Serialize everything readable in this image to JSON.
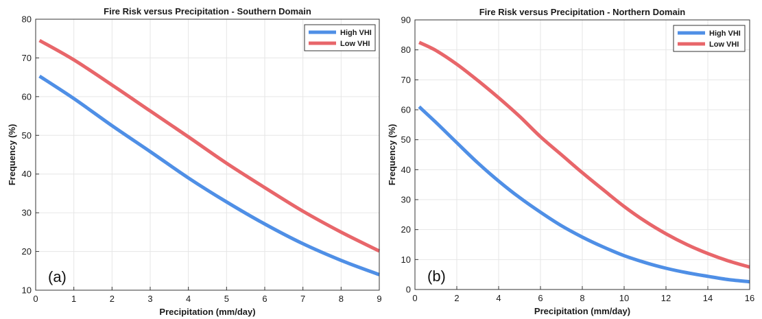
{
  "chart_data": [
    {
      "type": "line",
      "title": "Fire Risk versus Precipitation - Southern Domain",
      "xlabel": "Precipitation (mm/day)",
      "ylabel": "Frequency (%)",
      "xlim": [
        0,
        9
      ],
      "ylim": [
        10,
        80
      ],
      "xticks": [
        0,
        1,
        2,
        3,
        4,
        5,
        6,
        7,
        8,
        9
      ],
      "yticks": [
        10,
        20,
        30,
        40,
        50,
        60,
        70,
        80
      ],
      "grid": true,
      "legend_position": "top-right",
      "panel_tag": "(a)",
      "series": [
        {
          "name": "High VHI",
          "color": "#4f8fe6",
          "x": [
            0.1,
            1,
            2,
            3,
            4,
            5,
            6,
            7,
            8,
            9
          ],
          "values": [
            65.3,
            59.5,
            52.5,
            45.8,
            39.0,
            32.8,
            27.1,
            22.0,
            17.7,
            14.0
          ]
        },
        {
          "name": "Low VHI",
          "color": "#e8666a",
          "x": [
            0.1,
            1,
            2,
            3,
            4,
            5,
            6,
            7,
            8,
            9
          ],
          "values": [
            74.5,
            69.5,
            63.0,
            56.3,
            49.6,
            42.8,
            36.5,
            30.4,
            25.0,
            20.1
          ]
        }
      ]
    },
    {
      "type": "line",
      "title": "Fire Risk versus Precipitation - Northern Domain",
      "xlabel": "Precipitation (mm/day)",
      "ylabel": "Frequency (%)",
      "xlim": [
        0,
        16
      ],
      "ylim": [
        0,
        90
      ],
      "xticks": [
        0,
        2,
        4,
        6,
        8,
        10,
        12,
        14,
        16
      ],
      "yticks": [
        0,
        10,
        20,
        30,
        40,
        50,
        60,
        70,
        80,
        90
      ],
      "grid": true,
      "legend_position": "top-right",
      "panel_tag": "(b)",
      "series": [
        {
          "name": "High VHI",
          "color": "#4f8fe6",
          "x": [
            0.2,
            1,
            2,
            3,
            4,
            5,
            6,
            7,
            8,
            9,
            10,
            11,
            12,
            13,
            14,
            15,
            16
          ],
          "values": [
            61.0,
            55.8,
            49.0,
            42.3,
            36.2,
            30.7,
            25.8,
            21.3,
            17.5,
            14.2,
            11.3,
            9.0,
            7.1,
            5.6,
            4.4,
            3.3,
            2.6
          ]
        },
        {
          "name": "Low VHI",
          "color": "#e8666a",
          "x": [
            0.2,
            1,
            2,
            3,
            4,
            5,
            6,
            7,
            8,
            9,
            10,
            11,
            12,
            13,
            14,
            15,
            16
          ],
          "values": [
            82.5,
            79.8,
            75.2,
            69.8,
            64.0,
            57.8,
            51.0,
            45.0,
            39.0,
            33.3,
            27.7,
            22.8,
            18.6,
            15.0,
            12.0,
            9.5,
            7.5
          ]
        }
      ]
    }
  ]
}
